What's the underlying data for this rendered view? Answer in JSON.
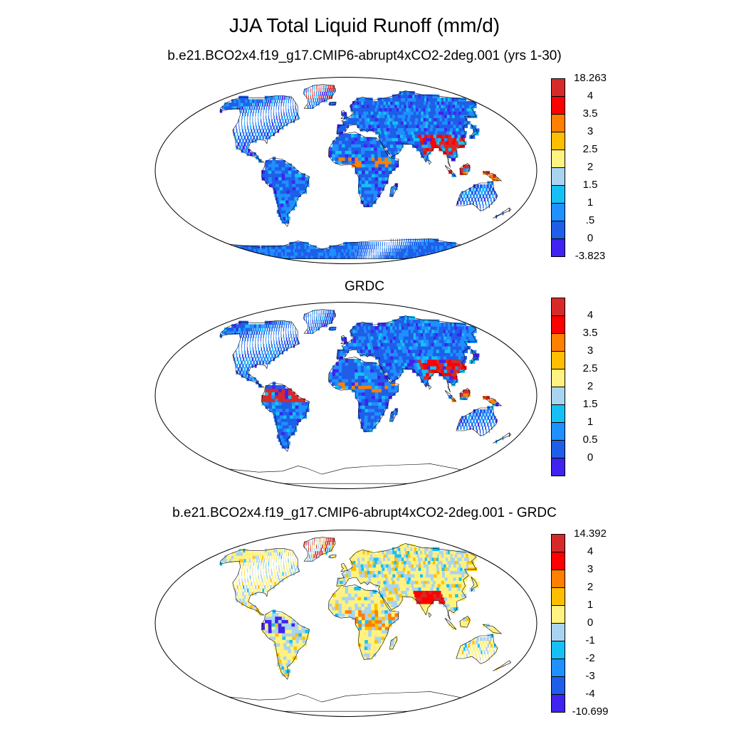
{
  "page": {
    "title": "JJA Total Liquid Runoff (mm/d)"
  },
  "panels": [
    {
      "title": "b.e21.BCO2x4.f19_g17.CMIP6-abrupt4xCO2-2deg.001 (yrs 1-30)",
      "colorbar_labels": [
        "18.263",
        "4",
        "3.5",
        "3",
        "2.5",
        "2",
        "1.5",
        "1",
        ".5",
        "0",
        "-3.823"
      ],
      "colors": [
        "#d62a2a",
        "#ff0000",
        "#ff7f00",
        "#ffbf00",
        "#fff280",
        "#a8d4f0",
        "#16c0f5",
        "#1e90ff",
        "#1f5ee8",
        "#3f23f0"
      ],
      "fill": "model"
    },
    {
      "title": "GRDC",
      "colorbar_labels": [
        "4",
        "3.5",
        "3",
        "2.5",
        "2",
        "1.5",
        "1",
        "0.5",
        "0"
      ],
      "colors": [
        "#d62a2a",
        "#ff0000",
        "#ff7f00",
        "#ffbf00",
        "#fff280",
        "#a8d4f0",
        "#16c0f5",
        "#1e90ff",
        "#1f5ee8",
        "#3f23f0"
      ],
      "fill": "obs"
    },
    {
      "title": "b.e21.BCO2x4.f19_g17.CMIP6-abrupt4xCO2-2deg.001 - GRDC",
      "colorbar_labels": [
        "14.392",
        "4",
        "3",
        "2",
        "1",
        "0",
        "-1",
        "-2",
        "-3",
        "-4",
        "-10.699"
      ],
      "colors": [
        "#d62a2a",
        "#ff0000",
        "#ff7f00",
        "#ffbf00",
        "#fff280",
        "#a8d4f0",
        "#16c0f5",
        "#1e90ff",
        "#1f5ee8",
        "#3f23f0"
      ],
      "fill": "diff"
    }
  ]
}
